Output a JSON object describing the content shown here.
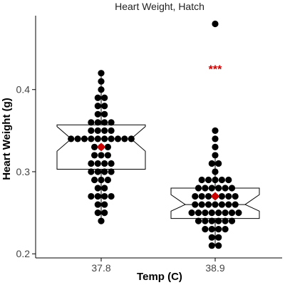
{
  "chart_data": {
    "type": "box-dotplot",
    "title": "Heart Weight, Hatch",
    "xlabel": "Temp (C)",
    "ylabel": "Heart Weight (g)",
    "categories": [
      "37.8",
      "38.9"
    ],
    "y_ticks": [
      "0.2",
      "0.3",
      "0.4"
    ],
    "ylim": [
      0.195,
      0.49
    ],
    "grid": false,
    "annotation": "***",
    "colors": {
      "points": "#000000",
      "mean": "#cc0000",
      "annotation": "#cc0000",
      "box": "#000000"
    },
    "groups": [
      {
        "category": "37.8",
        "box": {
          "q1": 0.303,
          "median": 0.34,
          "q3": 0.357,
          "notch_low": 0.325,
          "notch_high": 0.355,
          "whisker_low": 0.24,
          "whisker_high": 0.42
        },
        "mean": 0.33,
        "points": [
          [
            0.42,
            1
          ],
          [
            0.41,
            1
          ],
          [
            0.4,
            1
          ],
          [
            0.39,
            2
          ],
          [
            0.38,
            2
          ],
          [
            0.37,
            2
          ],
          [
            0.36,
            4
          ],
          [
            0.35,
            4
          ],
          [
            0.34,
            10
          ],
          [
            0.33,
            3
          ],
          [
            0.32,
            3
          ],
          [
            0.31,
            4
          ],
          [
            0.3,
            4
          ],
          [
            0.29,
            3
          ],
          [
            0.28,
            2
          ],
          [
            0.27,
            4
          ],
          [
            0.26,
            2
          ],
          [
            0.25,
            2
          ],
          [
            0.24,
            1
          ]
        ]
      },
      {
        "category": "38.9",
        "box": {
          "q1": 0.243,
          "median": 0.26,
          "q3": 0.28,
          "notch_low": 0.252,
          "notch_high": 0.272,
          "whisker_low": 0.21,
          "whisker_high": 0.32
        },
        "mean": 0.27,
        "points": [
          [
            0.48,
            1
          ],
          [
            0.35,
            1
          ],
          [
            0.34,
            1
          ],
          [
            0.33,
            1
          ],
          [
            0.32,
            1
          ],
          [
            0.31,
            2
          ],
          [
            0.3,
            1
          ],
          [
            0.29,
            5
          ],
          [
            0.28,
            6
          ],
          [
            0.27,
            7
          ],
          [
            0.26,
            7
          ],
          [
            0.25,
            8
          ],
          [
            0.24,
            6
          ],
          [
            0.23,
            4
          ],
          [
            0.22,
            2
          ],
          [
            0.21,
            2
          ]
        ]
      }
    ]
  }
}
